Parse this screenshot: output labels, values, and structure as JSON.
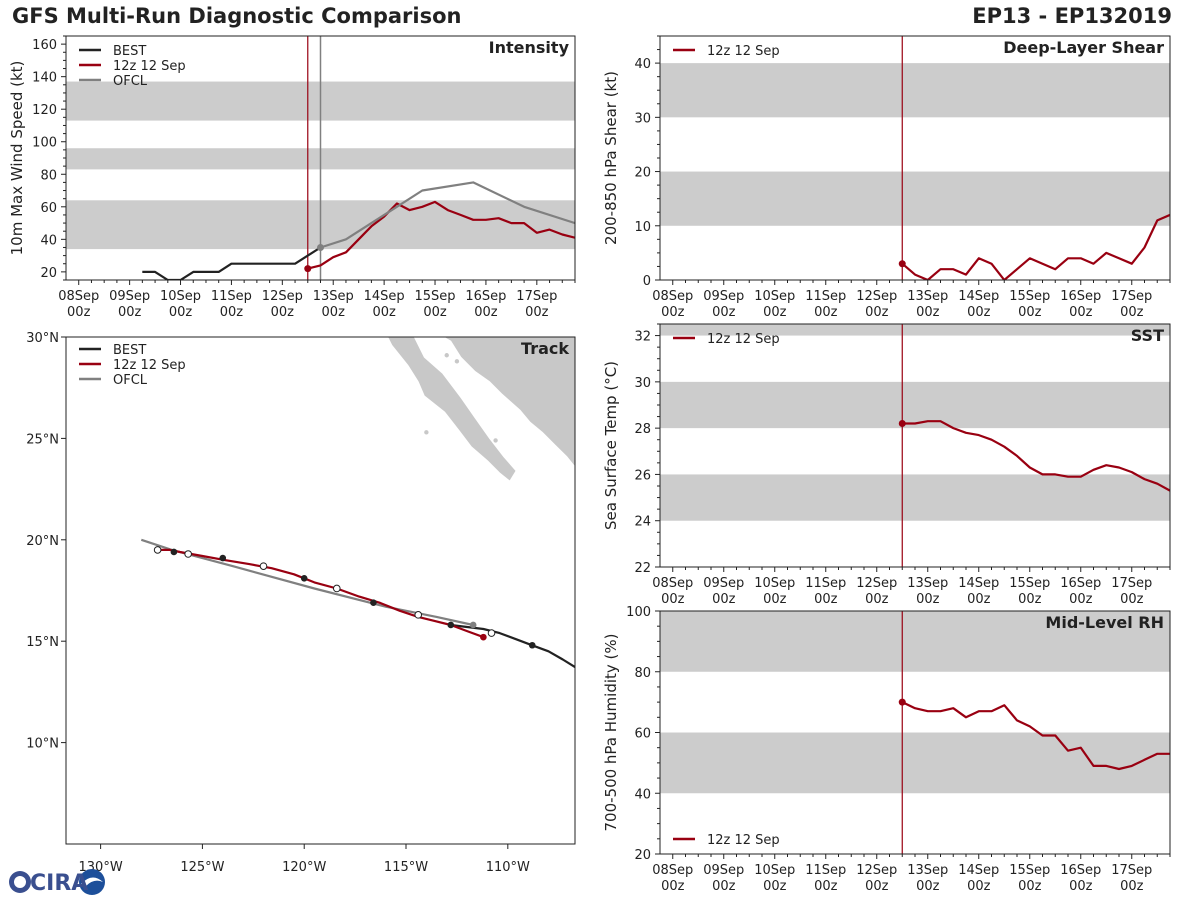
{
  "header": {
    "title": "GFS Multi-Run Diagnostic Comparison",
    "storm_id": "EP13 - EP132019"
  },
  "colors": {
    "best": "#222222",
    "run": "#990011",
    "ofcl": "#808080",
    "band": "#cccccc",
    "land": "#c8c8c8"
  },
  "time_ticks": [
    "08Sep\n00z",
    "09Sep\n00z",
    "10Sep\n00z",
    "11Sep\n00z",
    "12Sep\n00z",
    "13Sep\n00z",
    "14Sep\n00z",
    "15Sep\n00z",
    "16Sep\n00z",
    "17Sep\n00z"
  ],
  "logo": {
    "text": "CIRA"
  },
  "chart_data": [
    {
      "id": "intensity",
      "type": "line",
      "title": "Intensity",
      "ylabel": "10m Max Wind Speed (kt)",
      "xlim": [
        -0.25,
        9.75
      ],
      "ylim": [
        15,
        165
      ],
      "yticks": [
        20,
        40,
        60,
        80,
        100,
        120,
        140,
        160
      ],
      "bands": [
        [
          34,
          64
        ],
        [
          83,
          96
        ],
        [
          113,
          137
        ]
      ],
      "init_time": 4.5,
      "ofcl_time": 4.75,
      "legend": [
        "BEST",
        "12z 12 Sep",
        "OFCL"
      ],
      "series": [
        {
          "name": "BEST",
          "key": "best",
          "x": [
            1.25,
            1.5,
            1.75,
            2.0,
            2.25,
            2.5,
            2.75,
            3.0,
            3.25,
            3.5,
            3.75,
            4.0,
            4.25,
            4.5,
            4.75
          ],
          "y": [
            20,
            20,
            15,
            15,
            20,
            20,
            20,
            25,
            25,
            25,
            25,
            25,
            25,
            30,
            35
          ]
        },
        {
          "name": "12z 12 Sep",
          "key": "run",
          "x": [
            4.5,
            4.75,
            5.0,
            5.25,
            5.5,
            5.75,
            6.0,
            6.25,
            6.5,
            6.75,
            7.0,
            7.25,
            7.5,
            7.75,
            8.0,
            8.25,
            8.5,
            8.75,
            9.0,
            9.25,
            9.5,
            9.75
          ],
          "y": [
            22,
            24,
            29,
            32,
            40,
            48,
            54,
            62,
            58,
            60,
            63,
            58,
            55,
            52,
            52,
            53,
            50,
            50,
            44,
            46,
            43,
            41
          ]
        },
        {
          "name": "OFCL",
          "key": "ofcl",
          "x": [
            4.75,
            5.25,
            5.75,
            6.25,
            6.75,
            7.75,
            8.75,
            9.75
          ],
          "y": [
            35,
            40,
            50,
            60,
            70,
            75,
            60,
            50
          ]
        }
      ]
    },
    {
      "id": "shear",
      "type": "line",
      "title": "Deep-Layer Shear",
      "ylabel": "200-850 hPa Shear (kt)",
      "xlim": [
        -0.25,
        9.75
      ],
      "ylim": [
        0,
        45
      ],
      "yticks": [
        0,
        10,
        20,
        30,
        40
      ],
      "bands": [
        [
          10,
          20
        ],
        [
          30,
          40
        ]
      ],
      "init_time": 4.5,
      "legend": [
        "12z 12 Sep"
      ],
      "series": [
        {
          "name": "12z 12 Sep",
          "key": "run",
          "x": [
            4.5,
            4.75,
            5.0,
            5.25,
            5.5,
            5.75,
            6.0,
            6.25,
            6.5,
            6.75,
            7.0,
            7.25,
            7.5,
            7.75,
            8.0,
            8.25,
            8.5,
            8.75,
            9.0,
            9.25,
            9.5,
            9.75
          ],
          "y": [
            3,
            1,
            0,
            2,
            2,
            1,
            4,
            3,
            0,
            2,
            4,
            3,
            2,
            4,
            4,
            3,
            5,
            4,
            3,
            6,
            11,
            12
          ]
        }
      ]
    },
    {
      "id": "sst",
      "type": "line",
      "title": "SST",
      "ylabel": "Sea Surface Temp (°C)",
      "xlim": [
        -0.25,
        9.75
      ],
      "ylim": [
        22,
        32.5
      ],
      "yticks": [
        22,
        24,
        26,
        28,
        30,
        32
      ],
      "bands": [
        [
          24,
          26
        ],
        [
          28,
          30
        ],
        [
          32,
          34
        ]
      ],
      "init_time": 4.5,
      "legend": [
        "12z 12 Sep"
      ],
      "series": [
        {
          "name": "12z 12 Sep",
          "key": "run",
          "x": [
            4.5,
            4.75,
            5.0,
            5.25,
            5.5,
            5.75,
            6.0,
            6.25,
            6.5,
            6.75,
            7.0,
            7.25,
            7.5,
            7.75,
            8.0,
            8.25,
            8.5,
            8.75,
            9.0,
            9.25,
            9.5,
            9.75
          ],
          "y": [
            28.2,
            28.2,
            28.3,
            28.3,
            28.0,
            27.8,
            27.7,
            27.5,
            27.2,
            26.8,
            26.3,
            26.0,
            26.0,
            25.9,
            25.9,
            26.2,
            26.4,
            26.3,
            26.1,
            25.8,
            25.6,
            25.3
          ]
        }
      ]
    },
    {
      "id": "rh",
      "type": "line",
      "title": "Mid-Level RH",
      "ylabel": "700-500 hPa Humidity (%)",
      "xlim": [
        -0.25,
        9.75
      ],
      "ylim": [
        20,
        100
      ],
      "yticks": [
        20,
        40,
        60,
        80,
        100
      ],
      "bands": [
        [
          40,
          60
        ],
        [
          80,
          100
        ]
      ],
      "init_time": 4.5,
      "legend": [
        "12z 12 Sep"
      ],
      "series": [
        {
          "name": "12z 12 Sep",
          "key": "run",
          "x": [
            4.5,
            4.75,
            5.0,
            5.25,
            5.5,
            5.75,
            6.0,
            6.25,
            6.5,
            6.75,
            7.0,
            7.25,
            7.5,
            7.75,
            8.0,
            8.25,
            8.5,
            8.75,
            9.0,
            9.25,
            9.5,
            9.75
          ],
          "y": [
            70,
            68,
            67,
            67,
            68,
            65,
            67,
            67,
            69,
            64,
            62,
            59,
            59,
            54,
            55,
            49,
            49,
            48,
            49,
            51,
            53,
            53
          ]
        }
      ]
    },
    {
      "id": "track",
      "type": "scatter",
      "title": "Track",
      "xlim": [
        -131.7,
        -106.7
      ],
      "ylim": [
        5,
        30
      ],
      "xticks": [
        -130,
        -125,
        -120,
        -115,
        -110
      ],
      "xtick_labels": [
        "130°W",
        "125°W",
        "120°W",
        "115°W",
        "110°W"
      ],
      "yticks": [
        10,
        15,
        20,
        25,
        30
      ],
      "ytick_labels": [
        "10°N",
        "15°N",
        "20°N",
        "25°N",
        "30°N"
      ],
      "legend": [
        "BEST",
        "12z 12 Sep",
        "OFCL"
      ],
      "series": [
        {
          "name": "BEST",
          "key": "best",
          "lon": [
            -106.5,
            -107.3,
            -108.0,
            -108.8,
            -109.6,
            -110.4,
            -111.2,
            -112.0,
            -112.8
          ],
          "lat": [
            13.6,
            14.1,
            14.5,
            14.8,
            15.1,
            15.4,
            15.6,
            15.7,
            15.8
          ],
          "markers": [
            [
              -108.8,
              14.8,
              "filled"
            ],
            [
              -110.8,
              15.4,
              "open"
            ],
            [
              -112.8,
              15.8,
              "filled"
            ]
          ]
        },
        {
          "name": "12z 12 Sep",
          "key": "run",
          "lon": [
            -111.2,
            -112.0,
            -112.8,
            -113.6,
            -114.4,
            -115.3,
            -116.3,
            -117.3,
            -118.4,
            -119.5,
            -120.5,
            -121.6,
            -122.7,
            -123.9,
            -125.0,
            -126.1,
            -126.6,
            -127.2
          ],
          "lat": [
            15.2,
            15.5,
            15.8,
            16.0,
            16.2,
            16.5,
            16.9,
            17.2,
            17.6,
            17.9,
            18.3,
            18.6,
            18.8,
            19.0,
            19.2,
            19.4,
            19.5,
            19.5
          ],
          "markers": [
            [
              -111.2,
              15.2,
              "filled"
            ],
            [
              -114.4,
              16.3,
              "open"
            ],
            [
              -116.6,
              16.9,
              "filled"
            ],
            [
              -118.4,
              17.6,
              "open"
            ],
            [
              -120.0,
              18.1,
              "filled"
            ],
            [
              -122.0,
              18.7,
              "open"
            ],
            [
              -124.0,
              19.1,
              "filled"
            ],
            [
              -125.7,
              19.3,
              "open"
            ],
            [
              -126.4,
              19.4,
              "filled"
            ],
            [
              -127.2,
              19.5,
              "open"
            ]
          ]
        },
        {
          "name": "OFCL",
          "key": "ofcl",
          "lon": [
            -111.7,
            -113.5,
            -116.0,
            -119.5,
            -123.5,
            -126.5,
            -128.0
          ],
          "lat": [
            15.8,
            16.2,
            16.7,
            17.6,
            18.7,
            19.5,
            20.0
          ],
          "markers": [
            [
              -111.7,
              15.8,
              "gray"
            ]
          ]
        }
      ]
    }
  ]
}
